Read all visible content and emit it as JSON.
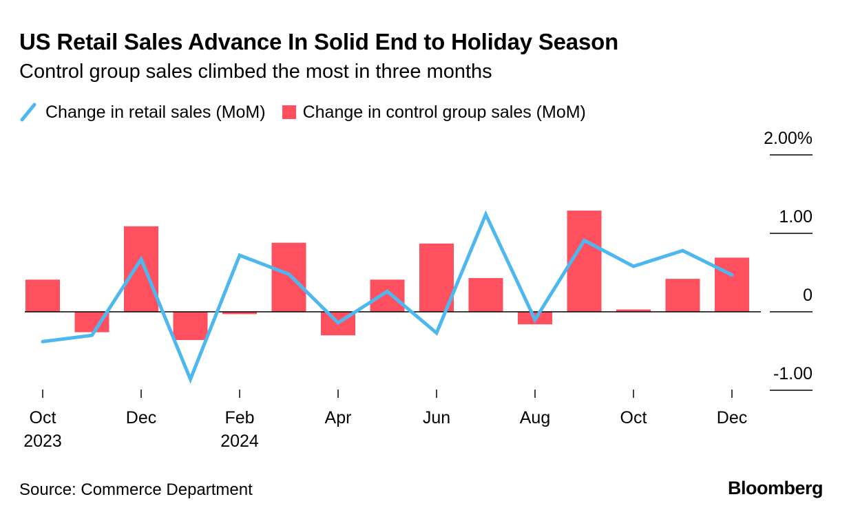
{
  "header": {
    "title": "US Retail Sales Advance In Solid End to Holiday Season",
    "subtitle": "Control group sales climbed the most in three months"
  },
  "legend": {
    "line_label": "Change in retail sales (MoM)",
    "bar_label": "Change in control group sales (MoM)"
  },
  "footer": {
    "source": "Source: Commerce Department",
    "brand": "Bloomberg"
  },
  "colors": {
    "line": "#4DB8F0",
    "bar": "#FF5060",
    "axis": "#000000"
  },
  "chart_data": {
    "type": "bar",
    "title": "US Retail Sales Advance In Solid End to Holiday Season",
    "subtitle": "Control group sales climbed the most in three months",
    "categories": [
      "Oct 2023",
      "Nov 2023",
      "Dec 2023",
      "Jan 2024",
      "Feb 2024",
      "Mar 2024",
      "Apr 2024",
      "May 2024",
      "Jun 2024",
      "Jul 2024",
      "Aug 2024",
      "Sep 2024",
      "Oct 2024",
      "Nov 2024",
      "Dec 2024"
    ],
    "series": [
      {
        "name": "Change in control group sales (MoM)",
        "type": "bar",
        "values": [
          0.41,
          -0.26,
          1.09,
          -0.36,
          -0.03,
          0.88,
          -0.3,
          0.41,
          0.87,
          0.43,
          -0.16,
          1.29,
          0.03,
          0.42,
          0.69
        ]
      },
      {
        "name": "Change in retail sales (MoM)",
        "type": "line",
        "values": [
          -0.38,
          -0.3,
          0.67,
          -0.86,
          0.72,
          0.48,
          -0.14,
          0.26,
          -0.27,
          1.24,
          -0.1,
          0.91,
          0.58,
          0.78,
          0.47
        ]
      }
    ],
    "ylim": [
      -1.0,
      2.0
    ],
    "y_ticks": [
      {
        "value": 2.0,
        "label": "2.00%"
      },
      {
        "value": 1.0,
        "label": "1.00"
      },
      {
        "value": 0,
        "label": "0"
      },
      {
        "value": -1.0,
        "label": "-1.00"
      }
    ],
    "x_ticks": [
      {
        "index": 0,
        "label": "Oct",
        "sublabel": "2023"
      },
      {
        "index": 2,
        "label": "Dec",
        "sublabel": ""
      },
      {
        "index": 4,
        "label": "Feb",
        "sublabel": "2024"
      },
      {
        "index": 6,
        "label": "Apr",
        "sublabel": ""
      },
      {
        "index": 8,
        "label": "Jun",
        "sublabel": ""
      },
      {
        "index": 10,
        "label": "Aug",
        "sublabel": ""
      },
      {
        "index": 12,
        "label": "Oct",
        "sublabel": ""
      },
      {
        "index": 14,
        "label": "Dec",
        "sublabel": ""
      }
    ],
    "xlabel": "",
    "ylabel": "",
    "legend_position": "top-left",
    "y_axis_side": "right",
    "grid": false
  }
}
